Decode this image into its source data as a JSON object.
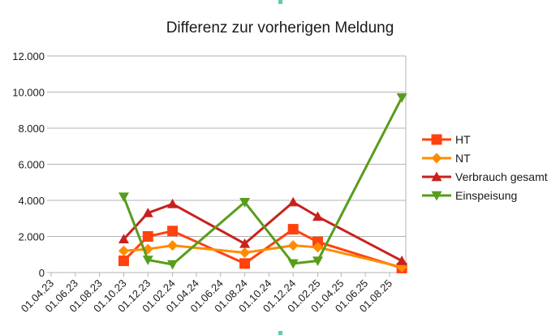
{
  "chart_data": {
    "type": "line",
    "title": "Differenz zur vorherigen Meldung",
    "xlabel": "",
    "ylabel": "",
    "x_tick_labels": [
      "01.04.23",
      "01.06.23",
      "01.08.23",
      "01.10.23",
      "01.12.23",
      "01.02.24",
      "01.04.24",
      "01.06.24",
      "01.08.24",
      "01.10.24",
      "01.12.24",
      "01.02.25",
      "01.04.25",
      "01.06.25",
      "01.08.25"
    ],
    "y_tick_labels": [
      "0",
      "2.000",
      "4.000",
      "6.000",
      "8.000",
      "10.000",
      "12.000"
    ],
    "ylim": [
      0,
      12000
    ],
    "grid": "horizontal",
    "legend_position": "right",
    "series": [
      {
        "name": "HT",
        "color": "#ff420e",
        "marker": "square",
        "points": [
          [
            "01.10.23",
            650
          ],
          [
            "01.12.23",
            2000
          ],
          [
            "01.02.24",
            2300
          ],
          [
            "01.08.24",
            500
          ],
          [
            "01.12.24",
            2400
          ],
          [
            "01.02.25",
            1700
          ],
          [
            "01.09.25",
            250
          ]
        ]
      },
      {
        "name": "NT",
        "color": "#ff8c00",
        "marker": "diamond",
        "points": [
          [
            "01.10.23",
            1200
          ],
          [
            "01.12.23",
            1300
          ],
          [
            "01.02.24",
            1500
          ],
          [
            "01.08.24",
            1100
          ],
          [
            "01.12.24",
            1500
          ],
          [
            "01.02.25",
            1400
          ],
          [
            "01.09.25",
            300
          ]
        ]
      },
      {
        "name": "Verbrauch gesamt",
        "color": "#c9211e",
        "marker": "triangle-up",
        "points": [
          [
            "01.10.23",
            1850
          ],
          [
            "01.12.23",
            3300
          ],
          [
            "01.02.24",
            3800
          ],
          [
            "01.08.24",
            1600
          ],
          [
            "01.12.24",
            3900
          ],
          [
            "01.02.25",
            3100
          ],
          [
            "01.09.25",
            650
          ]
        ]
      },
      {
        "name": "Einspeisung",
        "color": "#579d1c",
        "marker": "triangle-down",
        "points": [
          [
            "01.10.23",
            4200
          ],
          [
            "01.12.23",
            700
          ],
          [
            "01.02.24",
            450
          ],
          [
            "01.08.24",
            3900
          ],
          [
            "01.12.24",
            500
          ],
          [
            "01.02.25",
            650
          ],
          [
            "01.09.25",
            9700
          ]
        ]
      }
    ]
  }
}
